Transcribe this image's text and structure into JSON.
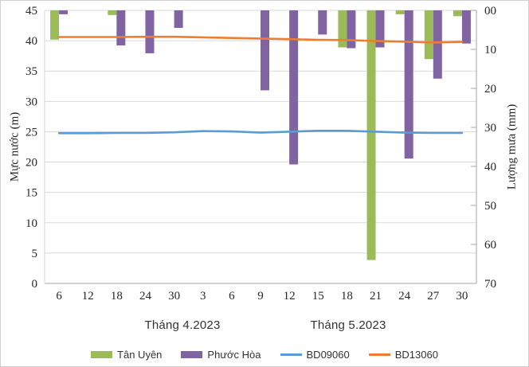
{
  "chart_data": {
    "type": "bar",
    "subtype": "dual-axis column + line combo",
    "title": "",
    "categories": [
      "6",
      "12",
      "18",
      "24",
      "30",
      "3",
      "6",
      "9",
      "12",
      "15",
      "18",
      "21",
      "24",
      "27",
      "30"
    ],
    "x_axis": {
      "month_groups": [
        {
          "label": "Tháng 4.2023",
          "category_span": [
            0,
            4
          ]
        },
        {
          "label": "Tháng 5.2023",
          "category_span": [
            5,
            14
          ]
        }
      ]
    },
    "left_axis": {
      "title": "Mực nước (m)",
      "min": 0,
      "max": 45,
      "step": 5,
      "tick_labels": [
        "45",
        "40",
        "35",
        "30",
        "25",
        "20",
        "15",
        "10",
        "5",
        "0"
      ]
    },
    "right_axis": {
      "title": "Lượng mưa (mm)",
      "min": 0,
      "max": 70,
      "step": 10,
      "direction": "reversed (0 at top, bars hang from top)",
      "tick_labels": [
        "00",
        "10",
        "20",
        "30",
        "40",
        "50",
        "60",
        "70"
      ]
    },
    "grid": "horizontal gridlines every 5 m",
    "series": [
      {
        "name": "Tân Uyên",
        "key": "tan-uyen",
        "type": "bar",
        "axis": "right",
        "unit": "mm",
        "color": "#9BBB59",
        "values": [
          7.5,
          0,
          1.2,
          0,
          0,
          0,
          0,
          0,
          0,
          0,
          9.5,
          64,
          1,
          12.5,
          1.5
        ]
      },
      {
        "name": "Phước Hòa",
        "key": "phuoc-hoa",
        "type": "bar",
        "axis": "right",
        "unit": "mm",
        "color": "#8064A2",
        "values": [
          1,
          0,
          9,
          11,
          4.5,
          0,
          0,
          20.5,
          39.5,
          6.2,
          9.7,
          9.5,
          38,
          17.5,
          8.5
        ]
      },
      {
        "name": "BD09060",
        "key": "bd09060",
        "type": "line",
        "axis": "left",
        "unit": "m",
        "color": "#5B9BD5",
        "values": [
          24.75,
          24.75,
          24.8,
          24.8,
          24.9,
          25.1,
          25.05,
          24.85,
          25.0,
          25.15,
          25.15,
          25.0,
          24.85,
          24.8,
          24.8
        ]
      },
      {
        "name": "BD13060",
        "key": "bd13060",
        "type": "line",
        "axis": "left",
        "unit": "m",
        "color": "#ED7D31",
        "values": [
          40.6,
          40.6,
          40.6,
          40.65,
          40.65,
          40.55,
          40.45,
          40.35,
          40.25,
          40.15,
          40.1,
          39.95,
          39.85,
          39.7,
          39.8
        ]
      }
    ],
    "legend": {
      "position": "bottom-center",
      "items": [
        "Tân Uyên",
        "Phước Hòa",
        "BD09060",
        "BD13060"
      ]
    }
  }
}
